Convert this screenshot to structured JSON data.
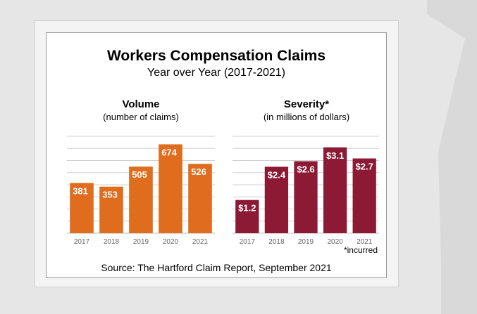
{
  "title": "Workers Compensation Claims",
  "subtitle": "Year over Year (2017-2021)",
  "footnote": "*incurred",
  "source": "Source: The Hartford Claim Report, September 2021",
  "colors": {
    "volume": "#e06c1e",
    "severity": "#8c1a35",
    "gridline": "#d0d0d0",
    "axis": "#bdbdbd",
    "tick": "#666666",
    "label": "#ffffff"
  },
  "chart_data": [
    {
      "type": "bar",
      "title": "Volume",
      "subtitle": "(number of claims)",
      "categories": [
        "2017",
        "2018",
        "2019",
        "2020",
        "2021"
      ],
      "values": [
        381,
        353,
        505,
        674,
        526
      ],
      "value_labels": [
        "381",
        "353",
        "505",
        "674",
        "526"
      ],
      "ylim": [
        0,
        735
      ],
      "grid": true
    },
    {
      "type": "bar",
      "title": "Severity*",
      "subtitle": "(in millions of dollars)",
      "categories": [
        "2017",
        "2018",
        "2019",
        "2020",
        "2021"
      ],
      "values": [
        1.2,
        2.4,
        2.6,
        3.1,
        2.7
      ],
      "value_labels": [
        "$1.2",
        "$2.4",
        "$2.6",
        "$3.1",
        "$2.7"
      ],
      "ylim": [
        0,
        3.5
      ],
      "grid": true
    }
  ]
}
